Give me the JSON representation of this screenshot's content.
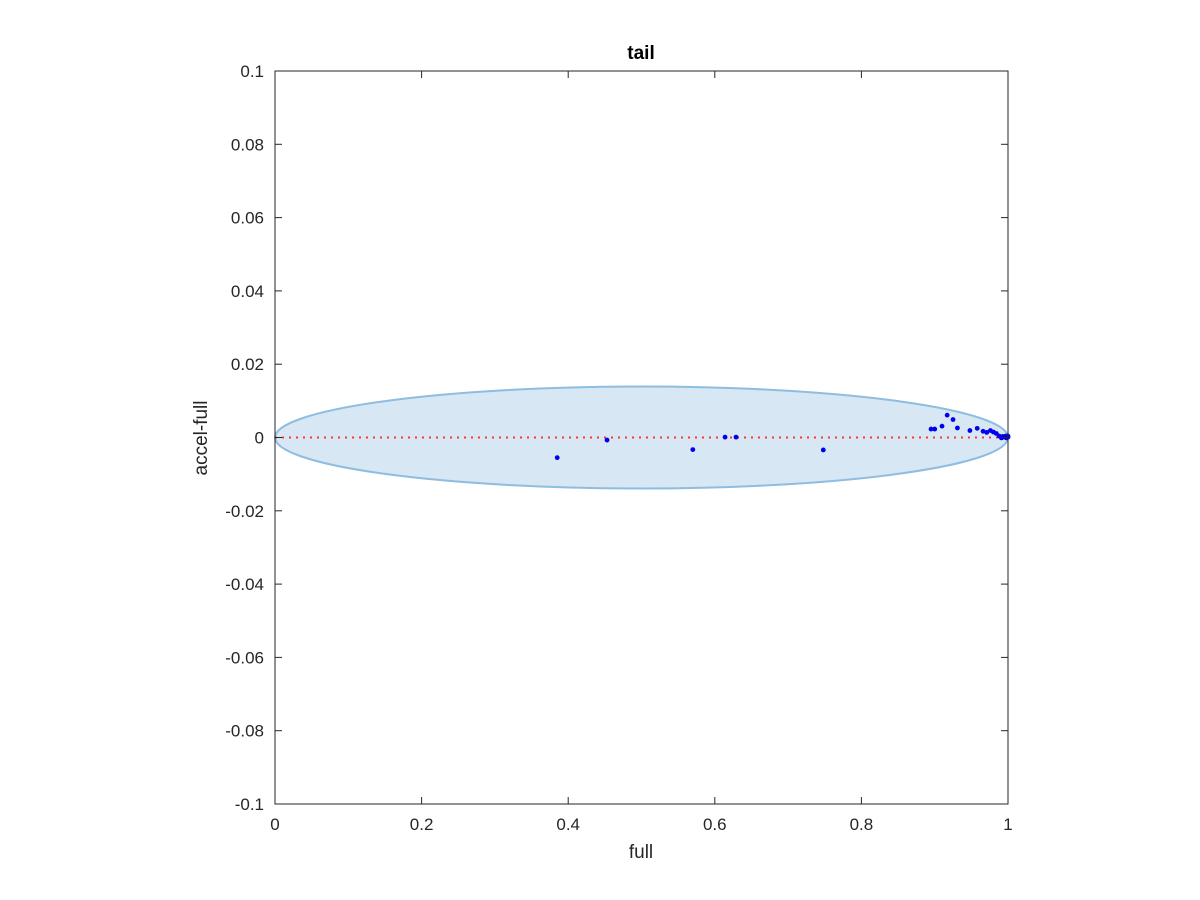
{
  "chart_data": {
    "type": "scatter",
    "title": "tail",
    "xlabel": "full",
    "ylabel": "accel-full",
    "xlim": [
      0,
      1
    ],
    "ylim": [
      -0.1,
      0.1
    ],
    "xticks": [
      0,
      0.2,
      0.4,
      0.6,
      0.8,
      1
    ],
    "xtick_labels": [
      "0",
      "0.2",
      "0.4",
      "0.6",
      "0.8",
      "1"
    ],
    "yticks": [
      -0.1,
      -0.08,
      -0.06,
      -0.04,
      -0.02,
      0,
      0.02,
      0.04,
      0.06,
      0.08,
      0.1
    ],
    "ytick_labels": [
      "-0.1",
      "-0.08",
      "-0.06",
      "-0.04",
      "-0.02",
      "0",
      "0.02",
      "0.04",
      "0.06",
      "0.08",
      "0.1"
    ],
    "grid": false,
    "reference_line": {
      "y": 0,
      "style": "dotted",
      "color": "#ff3333"
    },
    "ellipse": {
      "cx": 0.5,
      "cy": 0,
      "rx": 0.5,
      "ry": 0.0139,
      "fill": "#d7e7f4",
      "stroke": "#8fbde0"
    },
    "series": [
      {
        "color": "#0000ee",
        "x": [
          0.385,
          0.453,
          0.57,
          0.614,
          0.629,
          0.748,
          0.895,
          0.9,
          0.91,
          0.917,
          0.925,
          0.931,
          0.948,
          0.958,
          0.966,
          0.971,
          0.976,
          0.98,
          0.984,
          0.988,
          0.991,
          0.993,
          0.995,
          0.997,
          0.998,
          0.999,
          1.0,
          1.0
        ],
        "y": [
          -0.0055,
          -0.0007,
          -0.0033,
          0.0001,
          0.0001,
          -0.0034,
          0.0023,
          0.0023,
          0.0031,
          0.0061,
          0.0049,
          0.0026,
          0.0019,
          0.0025,
          0.0017,
          0.0014,
          0.0019,
          0.0015,
          0.0011,
          0.0004,
          -0.0001,
          0.0003,
          0.0001,
          0.0004,
          -0.0001,
          0.0002,
          0.0004,
          0.0001
        ]
      }
    ]
  }
}
